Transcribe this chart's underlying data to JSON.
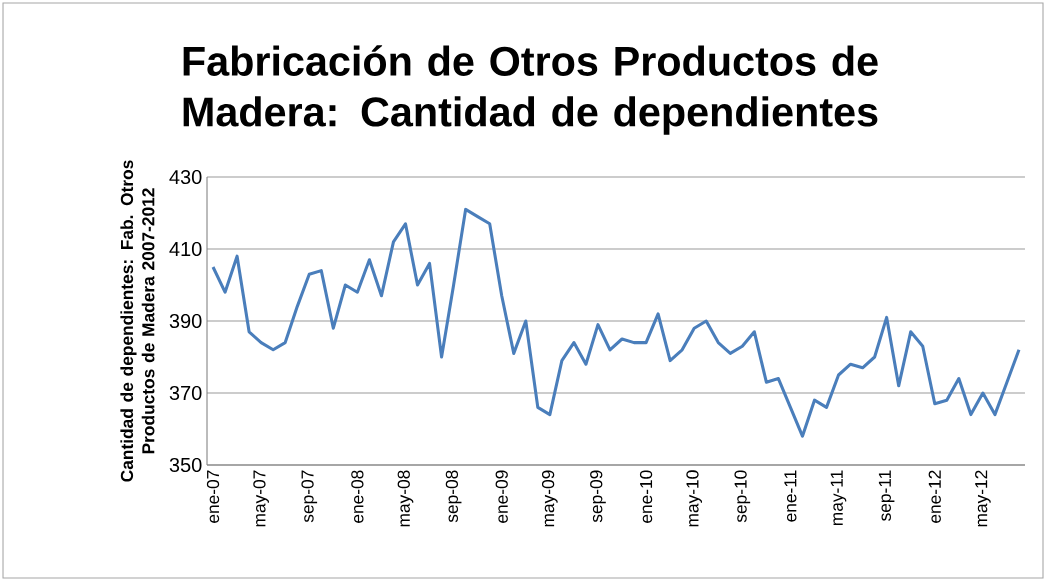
{
  "chart_data": {
    "type": "line",
    "title": "Fabricación de Otros Productos de Madera: Cantidad de dependientes",
    "ylabel": "Cantidad de dependientes: Fab. Otros Productos de Madera 2007-2012",
    "categories": [
      "ene-07",
      null,
      null,
      null,
      "may-07",
      null,
      null,
      null,
      "sep-07",
      null,
      null,
      null,
      "ene-08",
      null,
      null,
      null,
      "may-08",
      null,
      null,
      null,
      "sep-08",
      null,
      null,
      null,
      "ene-09",
      null,
      null,
      null,
      "may-09",
      null,
      null,
      null,
      "sep-09",
      null,
      null,
      null,
      "ene-10",
      null,
      null,
      null,
      "may-10",
      null,
      null,
      null,
      "sep-10",
      null,
      null,
      null,
      "ene-11",
      null,
      null,
      null,
      "may-11",
      null,
      null,
      null,
      "sep-11",
      null,
      null,
      null,
      "ene-12",
      null,
      null,
      null,
      "may-12",
      null,
      null,
      null
    ],
    "values": [
      405,
      398,
      408,
      387,
      384,
      382,
      384,
      394,
      403,
      404,
      388,
      400,
      398,
      407,
      397,
      412,
      417,
      400,
      406,
      380,
      400,
      421,
      419,
      417,
      397,
      381,
      390,
      366,
      364,
      379,
      384,
      378,
      389,
      382,
      385,
      384,
      384,
      392,
      379,
      382,
      388,
      390,
      384,
      381,
      383,
      387,
      373,
      374,
      366,
      358,
      368,
      366,
      375,
      378,
      377,
      380,
      391,
      372,
      387,
      383,
      367,
      368,
      374,
      364,
      370,
      364,
      373,
      382
    ],
    "color": "#4a7ebb",
    "ylim": [
      350,
      430
    ],
    "yticks": [
      350,
      370,
      390,
      410,
      430
    ],
    "grid": "y",
    "line_style": "solid"
  }
}
